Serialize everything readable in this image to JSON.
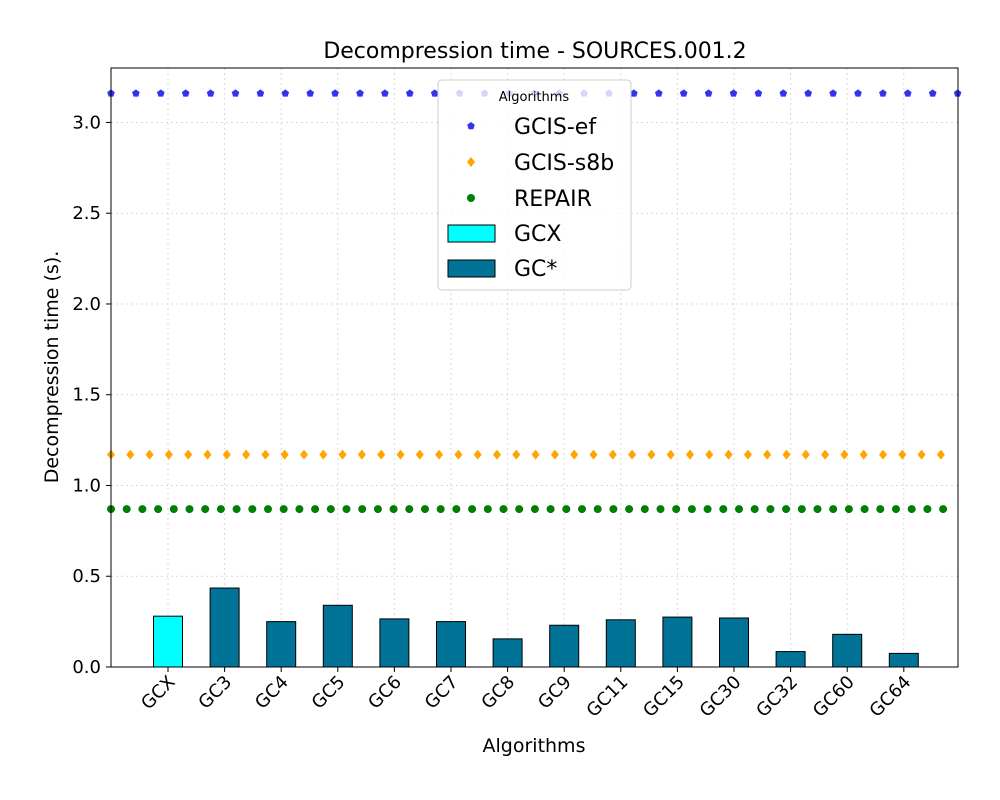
{
  "chart_data": {
    "type": "bar",
    "title": "Decompression time -  SOURCES.001.2",
    "xlabel": "Algorithms",
    "ylabel": "Decompression time (s).",
    "ylim": [
      0,
      3.3
    ],
    "yticks": [
      "0.0",
      "0.5",
      "1.0",
      "1.5",
      "2.0",
      "2.5",
      "3.0"
    ],
    "grid": true,
    "categories": [
      "GCX",
      "GC3",
      "GC4",
      "GC5",
      "GC6",
      "GC7",
      "GC8",
      "GC9",
      "GC11",
      "GC15",
      "GC30",
      "GC32",
      "GC60",
      "GC64"
    ],
    "values": [
      0.28,
      0.435,
      0.25,
      0.34,
      0.265,
      0.25,
      0.155,
      0.23,
      0.26,
      0.275,
      0.27,
      0.085,
      0.18,
      0.075
    ],
    "bar_series": [
      {
        "name": "GCX",
        "color": "#00ffff",
        "categories": [
          "GCX"
        ]
      },
      {
        "name": "GC*",
        "color": "#007396",
        "categories": [
          "GC3",
          "GC4",
          "GC5",
          "GC6",
          "GC7",
          "GC8",
          "GC9",
          "GC11",
          "GC15",
          "GC30",
          "GC32",
          "GC60",
          "GC64"
        ]
      }
    ],
    "reference_lines": [
      {
        "name": "GCIS-ef",
        "value": 3.16,
        "color": "#3333ee",
        "marker": "pentagon"
      },
      {
        "name": "GCIS-s8b",
        "value": 1.17,
        "color": "#ffa500",
        "marker": "diamond"
      },
      {
        "name": "REPAIR",
        "value": 0.87,
        "color": "#008000",
        "marker": "circle"
      }
    ],
    "legend": {
      "title": "Algorithms",
      "placement": "top-center",
      "entries": [
        "GCIS-ef",
        "GCIS-s8b",
        "REPAIR",
        "GCX",
        "GC*"
      ]
    }
  }
}
